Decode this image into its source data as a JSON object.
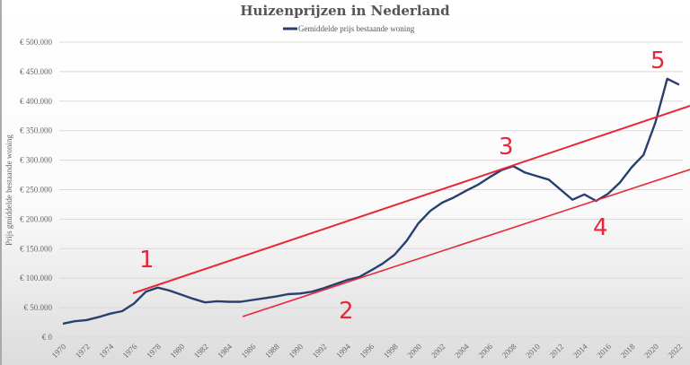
{
  "chart_data": {
    "type": "line",
    "title": "Huizenprijzen in Nederland",
    "xlabel": "",
    "ylabel": "Prijs gmiddelde bestaande woning",
    "legend": {
      "position": "top",
      "entries": [
        "Gemiddelde prijs bestaande woning"
      ]
    },
    "ylim": [
      0,
      500000
    ],
    "yticks": [
      "€ 0",
      "€ 50.000",
      "€ 100.000",
      "€ 150.000",
      "€ 200.000",
      "€ 250.000",
      "€ 300.000",
      "€ 350.000",
      "€ 400.000",
      "€ 450.000",
      "€ 500.000"
    ],
    "xticks": [
      "1970",
      "1972",
      "1974",
      "1976",
      "1978",
      "1980",
      "1982",
      "1984",
      "1986",
      "1988",
      "1990",
      "1992",
      "1994",
      "1996",
      "1998",
      "2000",
      "2002",
      "2004",
      "2006",
      "2008",
      "2010",
      "2012",
      "2014",
      "2016",
      "2018",
      "2020",
      "2022"
    ],
    "grid": true,
    "series": [
      {
        "name": "Gemiddelde prijs bestaande woning",
        "color": "#27406f",
        "x": [
          1970,
          1971,
          1972,
          1973,
          1974,
          1975,
          1976,
          1977,
          1978,
          1979,
          1980,
          1981,
          1982,
          1983,
          1984,
          1985,
          1986,
          1987,
          1988,
          1989,
          1990,
          1991,
          1992,
          1993,
          1994,
          1995,
          1996,
          1997,
          1998,
          1999,
          2000,
          2001,
          2002,
          2003,
          2004,
          2005,
          2006,
          2007,
          2008,
          2009,
          2010,
          2011,
          2012,
          2013,
          2014,
          2015,
          2016,
          2017,
          2018,
          2019,
          2020,
          2021,
          2022
        ],
        "values": [
          23000,
          27000,
          29000,
          34000,
          40000,
          44000,
          57000,
          77000,
          84000,
          79000,
          72000,
          65000,
          59000,
          61000,
          60000,
          60000,
          63000,
          66000,
          69000,
          73000,
          74000,
          77000,
          83000,
          90000,
          97000,
          102000,
          113000,
          125000,
          140000,
          163000,
          193000,
          214000,
          228000,
          237000,
          248000,
          258000,
          271000,
          283000,
          290000,
          279000,
          273000,
          267000,
          250000,
          233000,
          242000,
          231000,
          243000,
          262000,
          288000,
          309000,
          364000,
          438000,
          428000
        ]
      }
    ],
    "annotations": {
      "color": "#e8263a",
      "labels": [
        "1",
        "2",
        "3",
        "4",
        "5"
      ]
    }
  }
}
